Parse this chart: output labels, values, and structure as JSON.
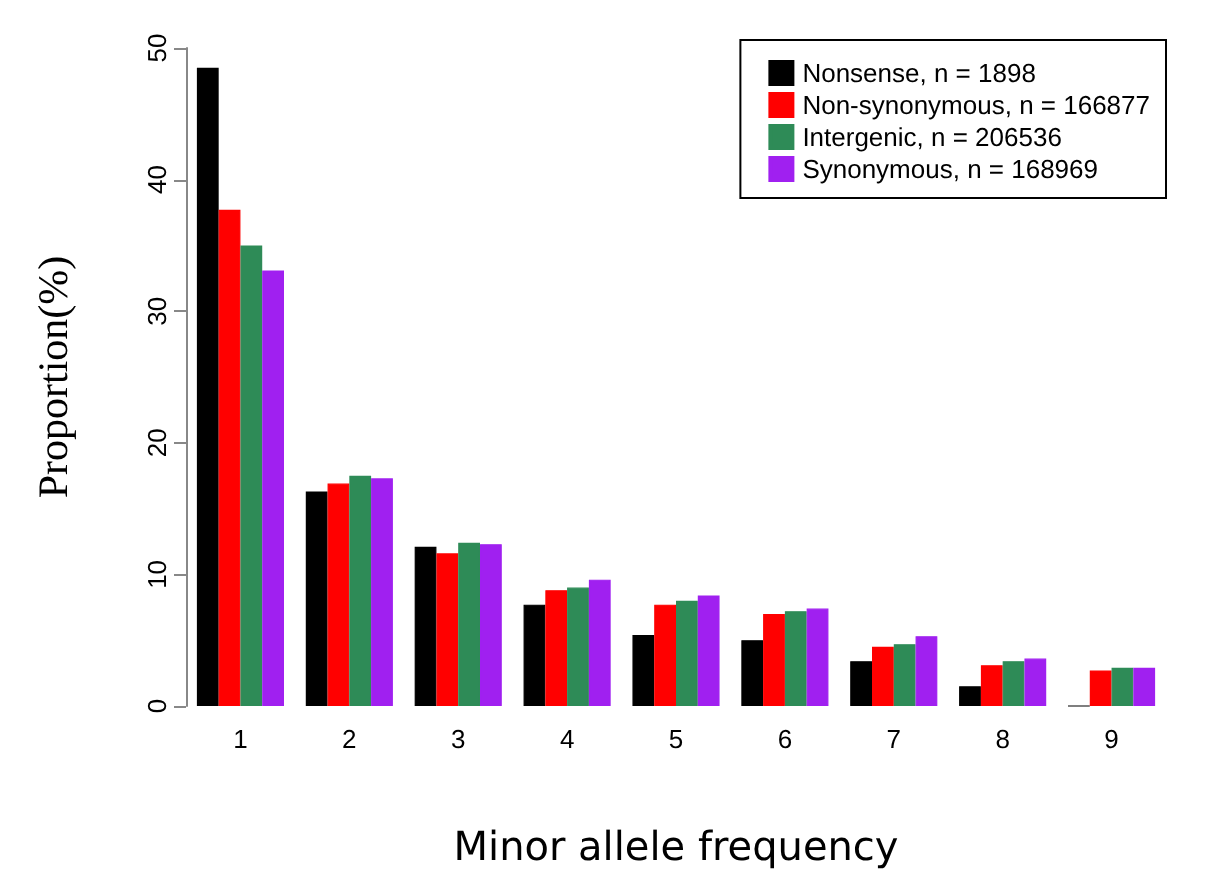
{
  "chart_data": {
    "type": "bar",
    "xlabel": "Minor allele frequency",
    "ylabel": "Proportion(%)",
    "categories": [
      "1",
      "2",
      "3",
      "4",
      "5",
      "6",
      "7",
      "8",
      "9"
    ],
    "series": [
      {
        "name": "Nonsense, n = 1898",
        "color": "#000000",
        "values": [
          48.5,
          16.3,
          12.1,
          7.7,
          5.4,
          5.0,
          3.4,
          1.5,
          0
        ]
      },
      {
        "name": "Non-synonymous, n = 166877",
        "color": "#ff0000",
        "values": [
          37.7,
          16.9,
          11.6,
          8.8,
          7.7,
          7.0,
          4.5,
          3.1,
          2.7
        ]
      },
      {
        "name": "Intergenic, n = 206536",
        "color": "#2e8b57",
        "values": [
          35.0,
          17.5,
          12.4,
          9.0,
          8.0,
          7.2,
          4.7,
          3.4,
          2.9
        ]
      },
      {
        "name": "Synonymous, n = 168969",
        "color": "#a020f0",
        "values": [
          33.1,
          17.3,
          12.3,
          9.6,
          8.4,
          7.4,
          5.3,
          3.6,
          2.9
        ]
      }
    ],
    "ylim": [
      0,
      50
    ],
    "yticks": [
      0,
      10,
      20,
      30,
      40,
      50
    ],
    "grid": false,
    "legend": "top right"
  }
}
